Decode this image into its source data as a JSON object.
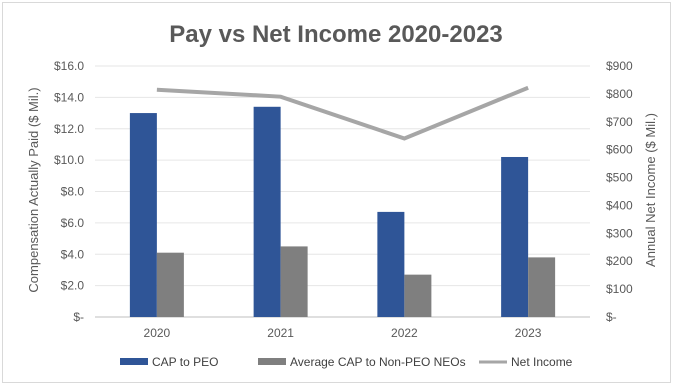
{
  "chart_data": {
    "type": "bar",
    "title": "Pay vs Net Income 2020-2023",
    "categories": [
      "2020",
      "2021",
      "2022",
      "2023"
    ],
    "series": [
      {
        "name": "CAP to PEO",
        "type": "bar",
        "axis": "left",
        "values": [
          13.0,
          13.4,
          6.7,
          10.2
        ],
        "color": "#2f5597"
      },
      {
        "name": "Average CAP to Non-PEO NEOs",
        "type": "bar",
        "axis": "left",
        "values": [
          4.1,
          4.5,
          2.7,
          3.8
        ],
        "color": "#7f7f7f"
      },
      {
        "name": "Net Income",
        "type": "line",
        "axis": "right",
        "values": [
          815,
          790,
          640,
          822
        ],
        "color": "#a6a6a6"
      }
    ],
    "ylabel": "Compensation Actually Paid ($ Mil.)",
    "y2label": "Annual Net Income ($ Mil.)",
    "ylim": [
      0,
      16
    ],
    "y2lim": [
      0,
      900
    ],
    "yticks": [
      "$-",
      "$2.0",
      "$4.0",
      "$6.0",
      "$8.0",
      "$10.0",
      "$12.0",
      "$14.0",
      "$16.0"
    ],
    "y2ticks": [
      "$-",
      "$100",
      "$200",
      "$300",
      "$400",
      "$500",
      "$600",
      "$700",
      "$800",
      "$900"
    ],
    "grid": true,
    "legend_position": "bottom"
  }
}
